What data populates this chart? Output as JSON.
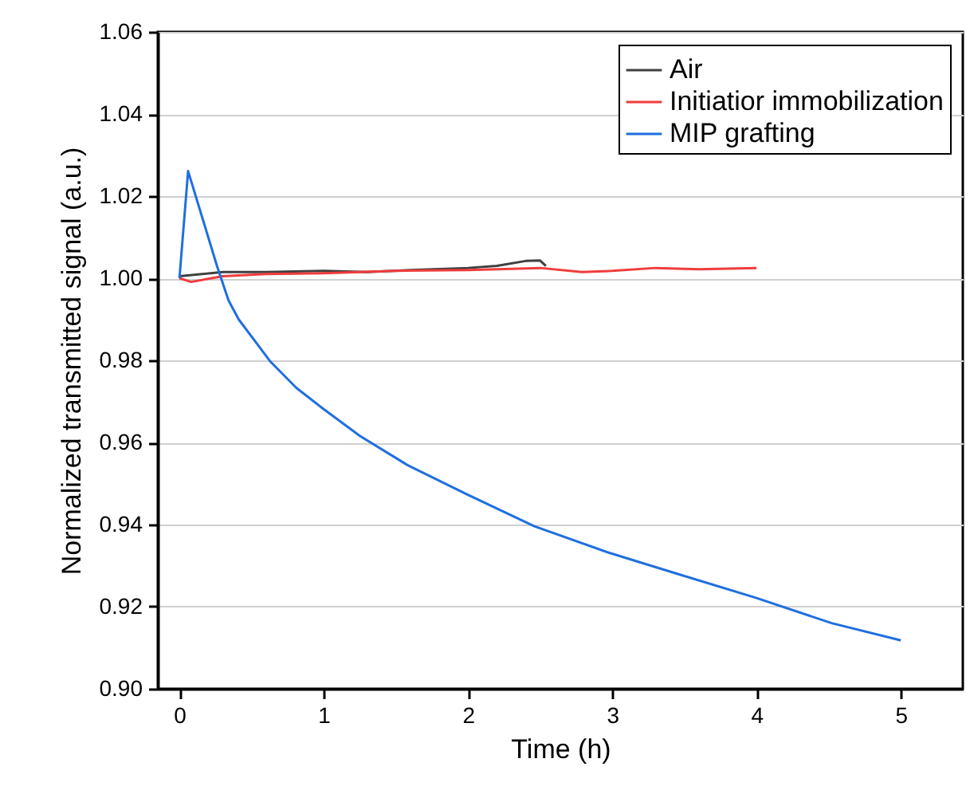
{
  "chart_data": {
    "type": "line",
    "xlabel": "Time (h)",
    "ylabel": "Normalized transmitted signal (a.u.)",
    "xlim": [
      -0.15,
      5.43
    ],
    "ylim": [
      0.9,
      1.06
    ],
    "xticks": [
      0,
      1,
      2,
      3,
      4,
      5
    ],
    "yticks": [
      {
        "value": 0.9,
        "label": "0.90"
      },
      0.92,
      0.94,
      0.96,
      0.98,
      {
        "value": 1.0,
        "label": "1.00"
      },
      1.02,
      1.04,
      1.06
    ],
    "grid": "y",
    "legend": "top right",
    "line_style": "solid",
    "marker": "none",
    "series": [
      {
        "name": "Air",
        "color": "#404040",
        "x": [
          0,
          0.3,
          0.6,
          1.0,
          1.3,
          1.6,
          2.0,
          2.2,
          2.4,
          2.5,
          2.54
        ],
        "values": [
          1.0005,
          1.0015,
          1.0015,
          1.0018,
          1.0015,
          1.002,
          1.0025,
          1.003,
          1.0042,
          1.0043,
          1.003
        ]
      },
      {
        "name": "Initiatior immobilization",
        "color": "#f03c3c",
        "x": [
          0,
          0.08,
          0.3,
          0.6,
          1.0,
          1.5,
          2.0,
          2.5,
          2.79,
          3.0,
          3.3,
          3.6,
          4.0
        ],
        "values": [
          1.0,
          0.9991,
          1.0005,
          1.001,
          1.0012,
          1.0018,
          1.002,
          1.0025,
          1.0015,
          1.0018,
          1.0025,
          1.0022,
          1.0025
        ]
      },
      {
        "name": "MIP grafting",
        "color": "#1f6fe0",
        "x": [
          0,
          0.06,
          0.26,
          0.34,
          0.41,
          0.56,
          0.63,
          0.81,
          1.0,
          1.25,
          1.58,
          1.99,
          2.46,
          2.98,
          3.45,
          4.0,
          4.52,
          5.0
        ],
        "values": [
          1.0,
          1.0261,
          1.003,
          0.9946,
          0.99,
          0.983,
          0.9797,
          0.9733,
          0.9681,
          0.9616,
          0.9545,
          0.9474,
          0.9396,
          0.9331,
          0.928,
          0.9221,
          0.916,
          0.9118
        ]
      }
    ]
  }
}
